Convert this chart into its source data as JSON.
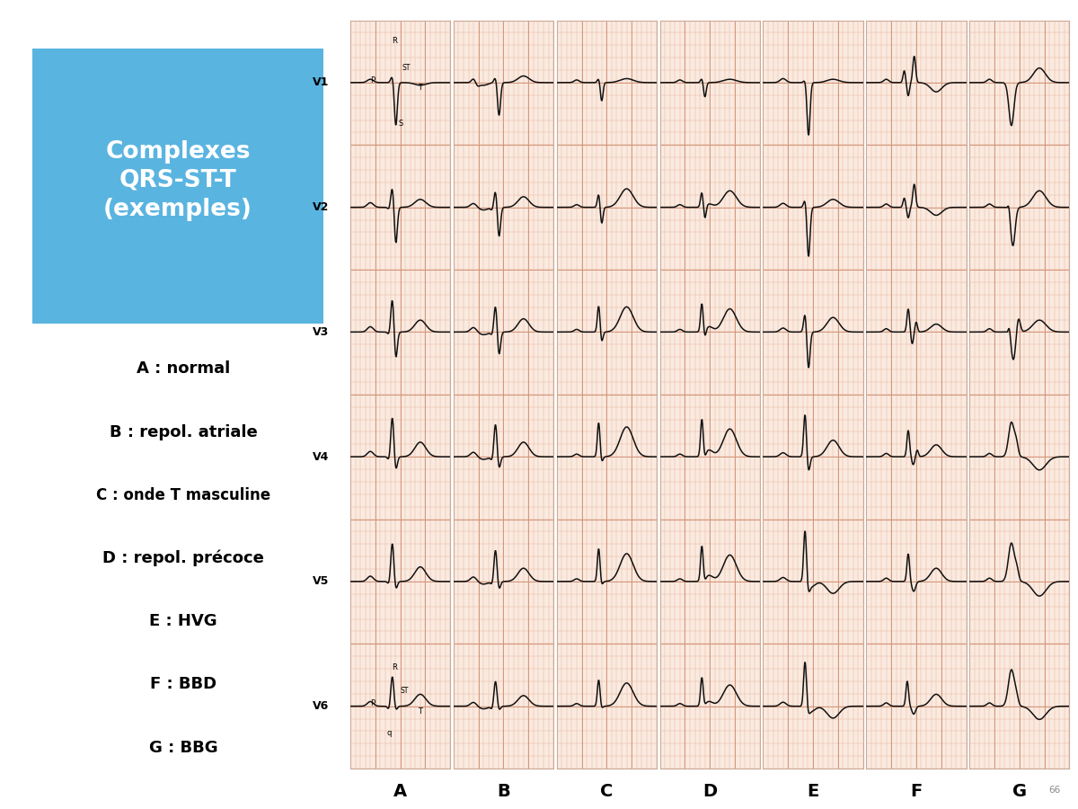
{
  "title": "Complexes\nQRS-ST-T\n(exemples)",
  "legend_items": [
    "A : normal",
    "B : repol. atriale",
    "C : onde T masculine",
    "D : repol. précoce",
    "E : HVG",
    "F : BBD",
    "G : BBG"
  ],
  "columns": [
    "A",
    "B",
    "C",
    "D",
    "E",
    "F",
    "G"
  ],
  "leads": [
    "V1",
    "V2",
    "V3",
    "V4",
    "V5",
    "V6"
  ],
  "bg_color": "#faeae0",
  "grid_minor_color": "#e8b8a0",
  "grid_major_color": "#d4967a",
  "paper_border": "#ccaa99",
  "line_color": "#111111",
  "title_bg": "#5ab4e0",
  "title_text_color": "#ffffff",
  "outer_bg": "#ffffff"
}
